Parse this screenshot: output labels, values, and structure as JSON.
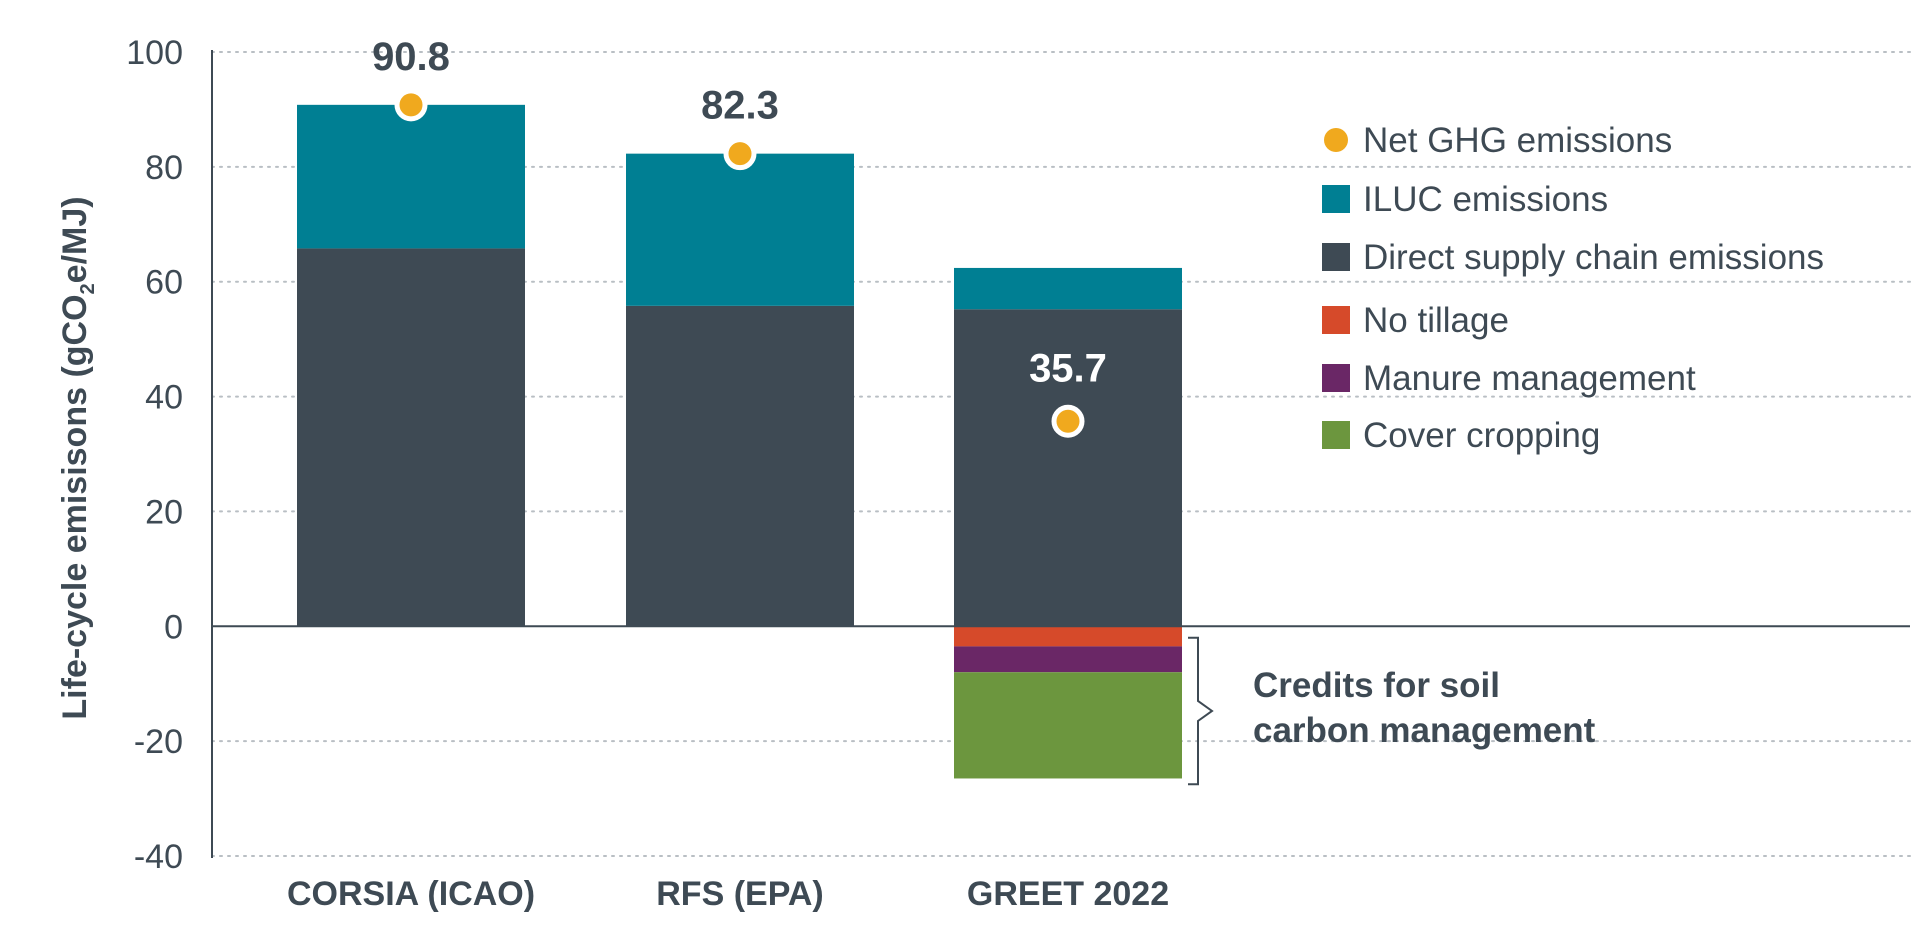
{
  "chart_data": {
    "type": "bar",
    "stacked": true,
    "title": "",
    "xlabel": "",
    "ylabel": {
      "prefix": "Life-cycle emisisons (gCO",
      "subscript": "2",
      "suffix": "e/MJ)"
    },
    "ylim": [
      -40,
      100
    ],
    "yticks": [
      100,
      80,
      60,
      40,
      20,
      0,
      -20,
      -40
    ],
    "grid": true,
    "legend_position": "top-right",
    "categories": [
      "CORSIA (ICAO)",
      "RFS (EPA)",
      "GREET 2022"
    ],
    "series": [
      {
        "name": "Direct supply chain emissions",
        "color": "#3e4a54",
        "values": [
          65.8,
          55.8,
          55.2
        ]
      },
      {
        "name": "ILUC emissions",
        "color": "#007f93",
        "values": [
          25.0,
          26.5,
          7.2
        ]
      },
      {
        "name": "No tillage",
        "color": "#d64a2a",
        "values": [
          0,
          0,
          -3.5
        ]
      },
      {
        "name": "Manure management",
        "color": "#6a2766",
        "values": [
          0,
          0,
          -4.5
        ]
      },
      {
        "name": "Cover cropping",
        "color": "#6c963e",
        "values": [
          0,
          0,
          -18.5
        ]
      }
    ],
    "net": {
      "name": "Net GHG emissions",
      "color": "#f0a91e",
      "values": [
        90.8,
        82.3,
        35.7
      ],
      "labels": [
        "90.8",
        "82.3",
        "35.7"
      ]
    },
    "legend": [
      {
        "name": "Net GHG emissions",
        "marker": "circle",
        "color": "#f0a91e"
      },
      {
        "name": "ILUC emissions",
        "marker": "square",
        "color": "#007f93"
      },
      {
        "name": "Direct supply chain emissions",
        "marker": "square",
        "color": "#3e4a54"
      },
      {
        "name": "No tillage",
        "marker": "square",
        "color": "#d64a2a"
      },
      {
        "name": "Manure management",
        "marker": "square",
        "color": "#6a2766"
      },
      {
        "name": "Cover cropping",
        "marker": "square",
        "color": "#6c963e"
      }
    ],
    "annotation": {
      "lines": [
        "Credits for soil",
        "carbon management"
      ]
    }
  }
}
